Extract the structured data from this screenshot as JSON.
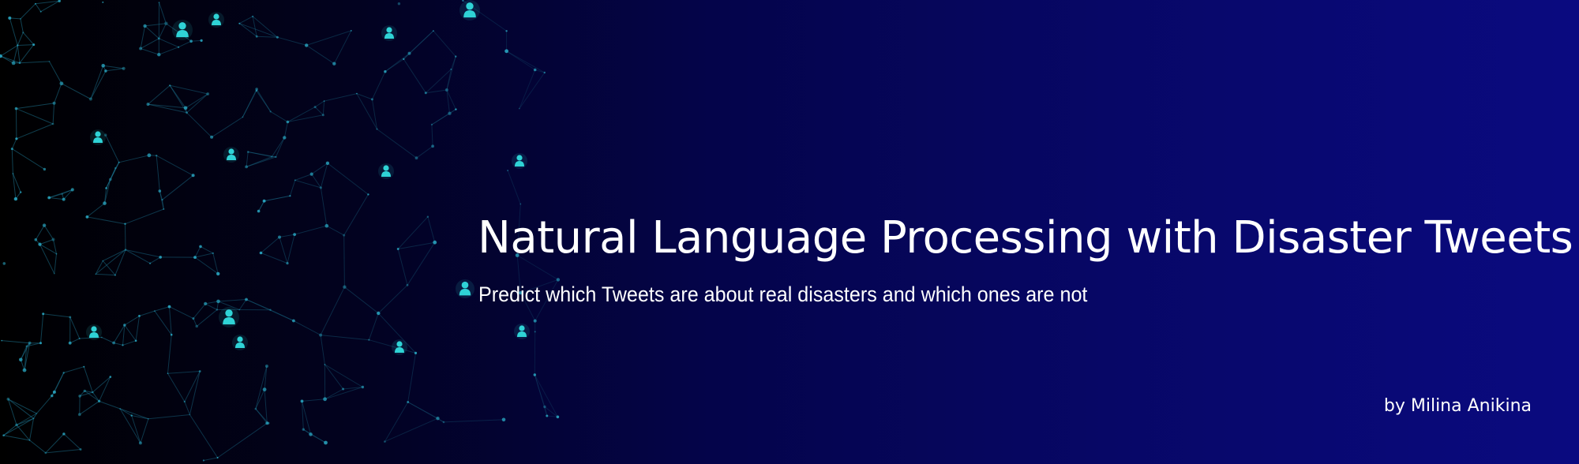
{
  "banner": {
    "title": "Natural Language Processing with Disaster Tweets",
    "subtitle": "Predict which Tweets are about real disasters and which ones are not",
    "author": "by Milina Anikina"
  },
  "decoration": {
    "graphic": "network-graph-with-person-icons",
    "icon": "person-icon",
    "node_color": "#29c6d4",
    "edge_color": "#1b6f8a"
  }
}
